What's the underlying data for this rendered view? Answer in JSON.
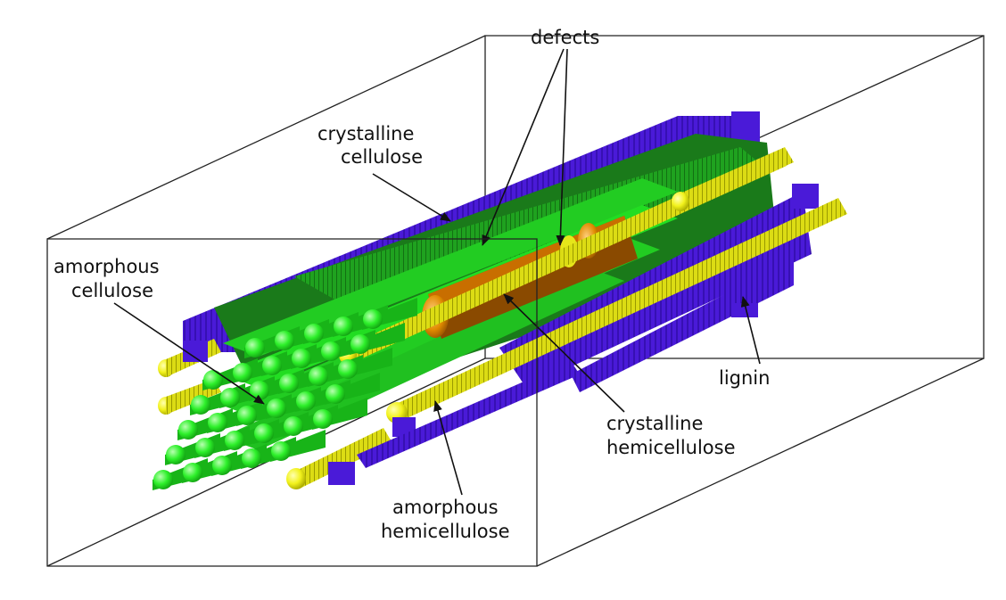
{
  "figure": {
    "labels": {
      "defects": "defects",
      "crystalline_cellulose": [
        "crystalline",
        "cellulose"
      ],
      "amorphous_cellulose": [
        "amorphous",
        "cellulose"
      ],
      "lignin": "lignin",
      "crystalline_hemicellulose": [
        "crystalline",
        "hemicellulose"
      ],
      "amorphous_hemicellulose": [
        "amorphous",
        "hemicellulose"
      ]
    },
    "colors": {
      "amorphous_cellulose": "#22ee22",
      "crystalline_cellulose": "#1a7a1a",
      "hemicellulose": "#e6e61a",
      "crystalline_hemicellulose": "#c86e00",
      "lignin": "#4a1ad8",
      "box_edges": "#222222"
    }
  }
}
